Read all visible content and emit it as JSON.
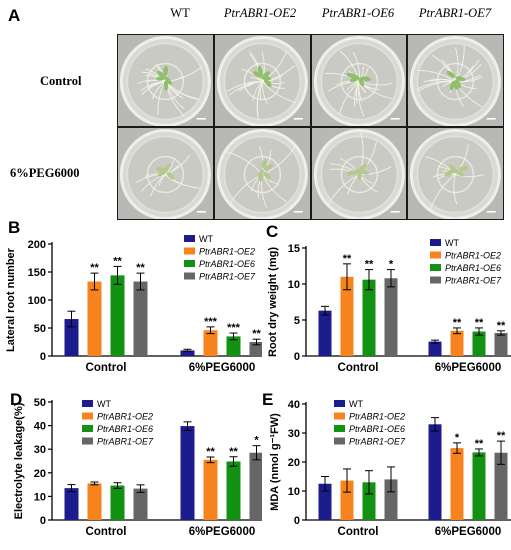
{
  "panel_a": {
    "letter": "A",
    "columns": [
      "WT",
      "PtrABR1-OE2",
      "PtrABR1-OE6",
      "PtrABR1-OE7"
    ],
    "rows": [
      "Control",
      "6%PEG6000"
    ]
  },
  "legend_labels": [
    "WT",
    "PtrABR1-OE2",
    "PtrABR1-OE6",
    "PtrABR1-OE7"
  ],
  "colors": {
    "WT": "#1c1c8f",
    "PtrABR1-OE2": "#f7831f",
    "PtrABR1-OE6": "#139113",
    "PtrABR1-OE7": "#666666"
  },
  "chart_data": [
    {
      "panel": "B",
      "type": "bar",
      "title": "",
      "ylabel": "Lateral root number",
      "xlabel": "",
      "ylim": [
        0,
        200
      ],
      "yticks": [
        0,
        50,
        100,
        150,
        200
      ],
      "categories": [
        "Control",
        "6%PEG6000"
      ],
      "series": [
        {
          "name": "WT",
          "values": [
            66,
            10
          ],
          "errors": [
            14,
            2
          ],
          "sig": [
            "",
            ""
          ]
        },
        {
          "name": "PtrABR1-OE2",
          "values": [
            133,
            46
          ],
          "errors": [
            15,
            6
          ],
          "sig": [
            "**",
            "***"
          ]
        },
        {
          "name": "PtrABR1-OE6",
          "values": [
            144,
            35
          ],
          "errors": [
            16,
            6
          ],
          "sig": [
            "**",
            "***"
          ]
        },
        {
          "name": "PtrABR1-OE7",
          "values": [
            133,
            25
          ],
          "errors": [
            15,
            5
          ],
          "sig": [
            "**",
            "**"
          ]
        }
      ],
      "legend": "top-right"
    },
    {
      "panel": "C",
      "type": "bar",
      "title": "",
      "ylabel": "Root dry weight (mg)",
      "xlabel": "",
      "ylim": [
        0,
        15
      ],
      "yticks": [
        0,
        5,
        10,
        15
      ],
      "categories": [
        "Control",
        "6%PEG6000"
      ],
      "series": [
        {
          "name": "WT",
          "values": [
            6.3,
            2.0
          ],
          "errors": [
            0.6,
            0.2
          ],
          "sig": [
            "",
            ""
          ]
        },
        {
          "name": "PtrABR1-OE2",
          "values": [
            11.0,
            3.5
          ],
          "errors": [
            1.8,
            0.4
          ],
          "sig": [
            "**",
            "**"
          ]
        },
        {
          "name": "PtrABR1-OE6",
          "values": [
            10.6,
            3.4
          ],
          "errors": [
            1.4,
            0.5
          ],
          "sig": [
            "**",
            "**"
          ]
        },
        {
          "name": "PtrABR1-OE7",
          "values": [
            10.8,
            3.2
          ],
          "errors": [
            1.2,
            0.3
          ],
          "sig": [
            "*",
            "**"
          ]
        }
      ],
      "legend": "top-right"
    },
    {
      "panel": "D",
      "type": "bar",
      "title": "",
      "ylabel": "Electrolyte leakage(%)",
      "xlabel": "",
      "ylim": [
        0,
        50
      ],
      "yticks": [
        0,
        10,
        20,
        30,
        40,
        50
      ],
      "categories": [
        "Control",
        "6%PEG6000"
      ],
      "series": [
        {
          "name": "WT",
          "values": [
            13.5,
            39.8
          ],
          "errors": [
            1.5,
            1.8
          ],
          "sig": [
            "",
            ""
          ]
        },
        {
          "name": "PtrABR1-OE2",
          "values": [
            15.5,
            25.5
          ],
          "errors": [
            0.6,
            1.2
          ],
          "sig": [
            "",
            "**"
          ]
        },
        {
          "name": "PtrABR1-OE6",
          "values": [
            14.6,
            24.8
          ],
          "errors": [
            1.2,
            2.0
          ],
          "sig": [
            "",
            "**"
          ]
        },
        {
          "name": "PtrABR1-OE7",
          "values": [
            13.3,
            28.5
          ],
          "errors": [
            1.6,
            3.0
          ],
          "sig": [
            "",
            "*"
          ]
        }
      ],
      "legend": "top-left"
    },
    {
      "panel": "E",
      "type": "bar",
      "title": "",
      "ylabel": "MDA (nmol g⁻¹FW)",
      "xlabel": "",
      "ylim": [
        0,
        40
      ],
      "yticks": [
        0,
        10,
        20,
        30,
        40
      ],
      "categories": [
        "Control",
        "6%PEG6000"
      ],
      "series": [
        {
          "name": "WT",
          "values": [
            12.5,
            33.0
          ],
          "errors": [
            2.5,
            2.3
          ],
          "sig": [
            "",
            ""
          ]
        },
        {
          "name": "PtrABR1-OE2",
          "values": [
            13.6,
            24.8
          ],
          "errors": [
            4.0,
            1.8
          ],
          "sig": [
            "",
            "*"
          ]
        },
        {
          "name": "PtrABR1-OE6",
          "values": [
            13.0,
            23.3
          ],
          "errors": [
            4.0,
            1.2
          ],
          "sig": [
            "",
            "**"
          ]
        },
        {
          "name": "PtrABR1-OE7",
          "values": [
            14.0,
            23.2
          ],
          "errors": [
            4.3,
            4.0
          ],
          "sig": [
            "",
            "**"
          ]
        }
      ],
      "legend": "top-left"
    }
  ]
}
